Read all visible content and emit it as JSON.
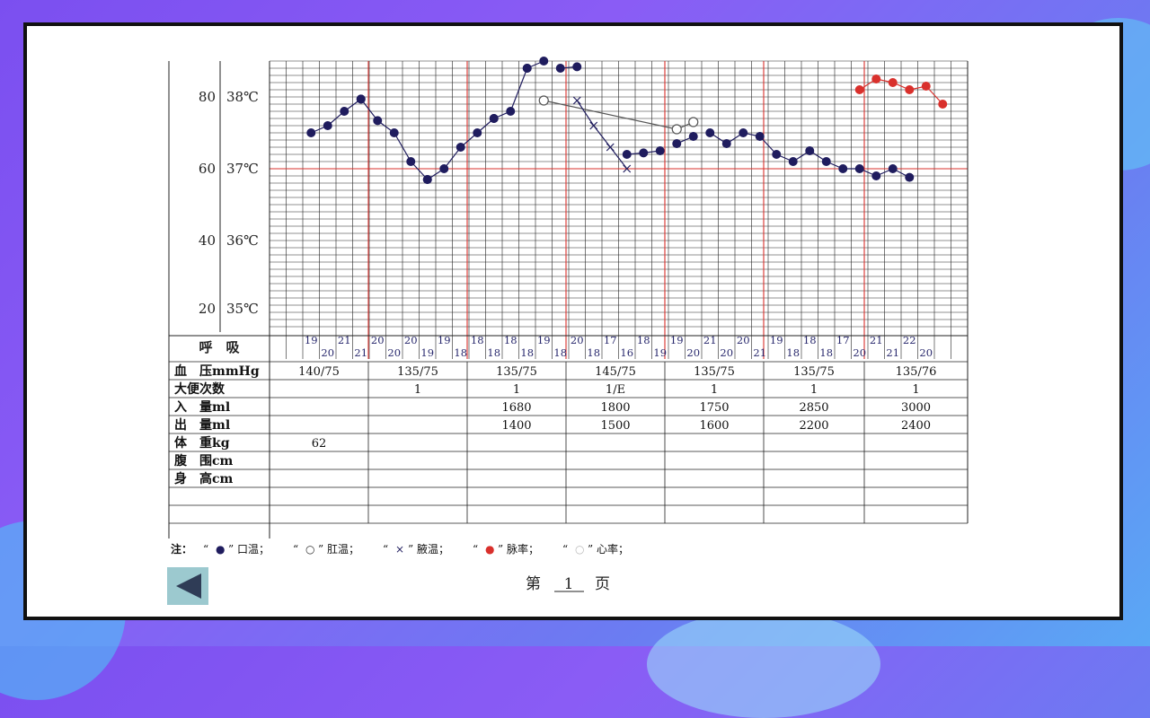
{
  "chart_data": {
    "type": "line",
    "y_pulse_ticks": [
      "80",
      "60",
      "40",
      "20"
    ],
    "y_temp_ticks": [
      "38℃",
      "37℃",
      "36℃",
      "35℃"
    ],
    "resp_label": "呼　吸",
    "respiration": [
      "19",
      "20",
      "21",
      "21",
      "20",
      "20",
      "20",
      "19",
      "19",
      "18",
      "18",
      "18",
      "18",
      "18",
      "19",
      "18",
      "20",
      "18",
      "17",
      "16",
      "18",
      "19",
      "19",
      "20",
      "21",
      "20",
      "20",
      "21",
      "19",
      "18",
      "18",
      "18",
      "17",
      "20",
      "21",
      "21",
      "22",
      "20"
    ],
    "series": [
      {
        "name": "口温",
        "color": "#1f1c5e",
        "marker": "filled",
        "segments": [
          [
            [
              0.5,
              37.5
            ],
            [
              1.5,
              37.6
            ],
            [
              2.5,
              37.8
            ],
            [
              3.5,
              37.97
            ]
          ],
          [
            [
              3.5,
              37.97
            ],
            [
              4.5,
              37.67
            ],
            [
              5.5,
              37.5
            ],
            [
              6.5,
              37.1
            ],
            [
              7.5,
              36.85
            ]
          ],
          [
            [
              7.5,
              36.85
            ],
            [
              8.5,
              37.0
            ],
            [
              9.5,
              37.3
            ],
            [
              10.5,
              37.5
            ],
            [
              11.5,
              37.7
            ]
          ],
          [
            [
              11.5,
              37.7
            ],
            [
              12.5,
              37.8
            ],
            [
              13.5,
              38.4
            ]
          ],
          [
            [
              13.5,
              38.4
            ],
            [
              14.5,
              38.5
            ]
          ],
          [
            [
              15.5,
              38.4
            ],
            [
              16.5,
              38.42
            ]
          ],
          [
            [
              19.5,
              37.2
            ],
            [
              20.5,
              37.22
            ],
            [
              21.5,
              37.25
            ]
          ],
          [
            [
              22.5,
              37.35
            ],
            [
              23.5,
              37.45
            ]
          ],
          [
            [
              24.5,
              37.5
            ],
            [
              25.5,
              37.35
            ],
            [
              26.5,
              37.5
            ],
            [
              27.5,
              37.45
            ],
            [
              28.5,
              37.2
            ],
            [
              29.5,
              37.1
            ],
            [
              30.5,
              37.25
            ],
            [
              31.5,
              37.1
            ],
            [
              32.5,
              37.0
            ],
            [
              33.5,
              37.0
            ],
            [
              34.5,
              36.9
            ],
            [
              35.5,
              37.0
            ],
            [
              36.5,
              36.88
            ]
          ]
        ]
      },
      {
        "name": "肛温",
        "color": "#555555",
        "marker": "hollow",
        "points": [
          [
            14.5,
            37.95
          ],
          [
            22.5,
            37.55
          ],
          [
            23.5,
            37.65
          ]
        ]
      },
      {
        "name": "腋温",
        "color": "#1f1c5e",
        "marker": "cross",
        "points": [
          [
            16.5,
            37.95
          ],
          [
            17.5,
            37.6
          ],
          [
            18.5,
            37.3
          ],
          [
            19.5,
            37.0
          ]
        ]
      },
      {
        "name": "脉率",
        "color": "#d9302c",
        "marker": "filled",
        "points": [
          [
            33.5,
            82
          ],
          [
            34.5,
            85
          ],
          [
            35.5,
            84
          ],
          [
            36.5,
            82
          ],
          [
            37.5,
            83
          ],
          [
            38.5,
            78
          ]
        ]
      },
      {
        "name": "心率",
        "color": "#999999",
        "marker": "hollow",
        "points": []
      }
    ]
  },
  "table": {
    "rows": [
      {
        "label": "血　压mmHg",
        "values": [
          "140/75",
          "135/75",
          "135/75",
          "145/75",
          "135/75",
          "135/75",
          "135/76"
        ]
      },
      {
        "label": "大便次数",
        "values": [
          "",
          "1",
          "1",
          "1/E",
          "1",
          "1",
          "1"
        ]
      },
      {
        "label": "入　量ml",
        "values": [
          "",
          "",
          "1680",
          "1800",
          "1750",
          "2850",
          "3000"
        ]
      },
      {
        "label": "出　量ml",
        "values": [
          "",
          "",
          "1400",
          "1500",
          "1600",
          "2200",
          "2400"
        ]
      },
      {
        "label": "体　重kg",
        "values": [
          "62",
          "",
          "",
          "",
          "",
          "",
          ""
        ]
      },
      {
        "label": "腹　围cm",
        "values": [
          "",
          "",
          "",
          "",
          "",
          "",
          ""
        ]
      },
      {
        "label": "身　高cm",
        "values": [
          "",
          "",
          "",
          "",
          "",
          "",
          ""
        ]
      },
      {
        "label": "",
        "values": [
          "",
          "",
          "",
          "",
          "",
          "",
          ""
        ]
      },
      {
        "label": "",
        "values": [
          "",
          "",
          "",
          "",
          "",
          "",
          ""
        ]
      }
    ]
  },
  "legend": {
    "prefix": "注：",
    "items": [
      {
        "symbol": "●",
        "color": "#1f1c5e",
        "label": "口温；"
      },
      {
        "symbol": "○",
        "color": "#333333",
        "label": "肛温；"
      },
      {
        "symbol": "×",
        "color": "#1f1c5e",
        "label": "腋温；"
      },
      {
        "symbol": "●",
        "color": "#d9302c",
        "label": "脉率；"
      },
      {
        "symbol": "○",
        "color": "#bbbbbb",
        "label": "心率；"
      }
    ]
  },
  "footer": {
    "page_prefix": "第",
    "page_number": "1",
    "page_suffix": "页"
  },
  "nav": {
    "prev_icon": "triangle-left-icon"
  }
}
